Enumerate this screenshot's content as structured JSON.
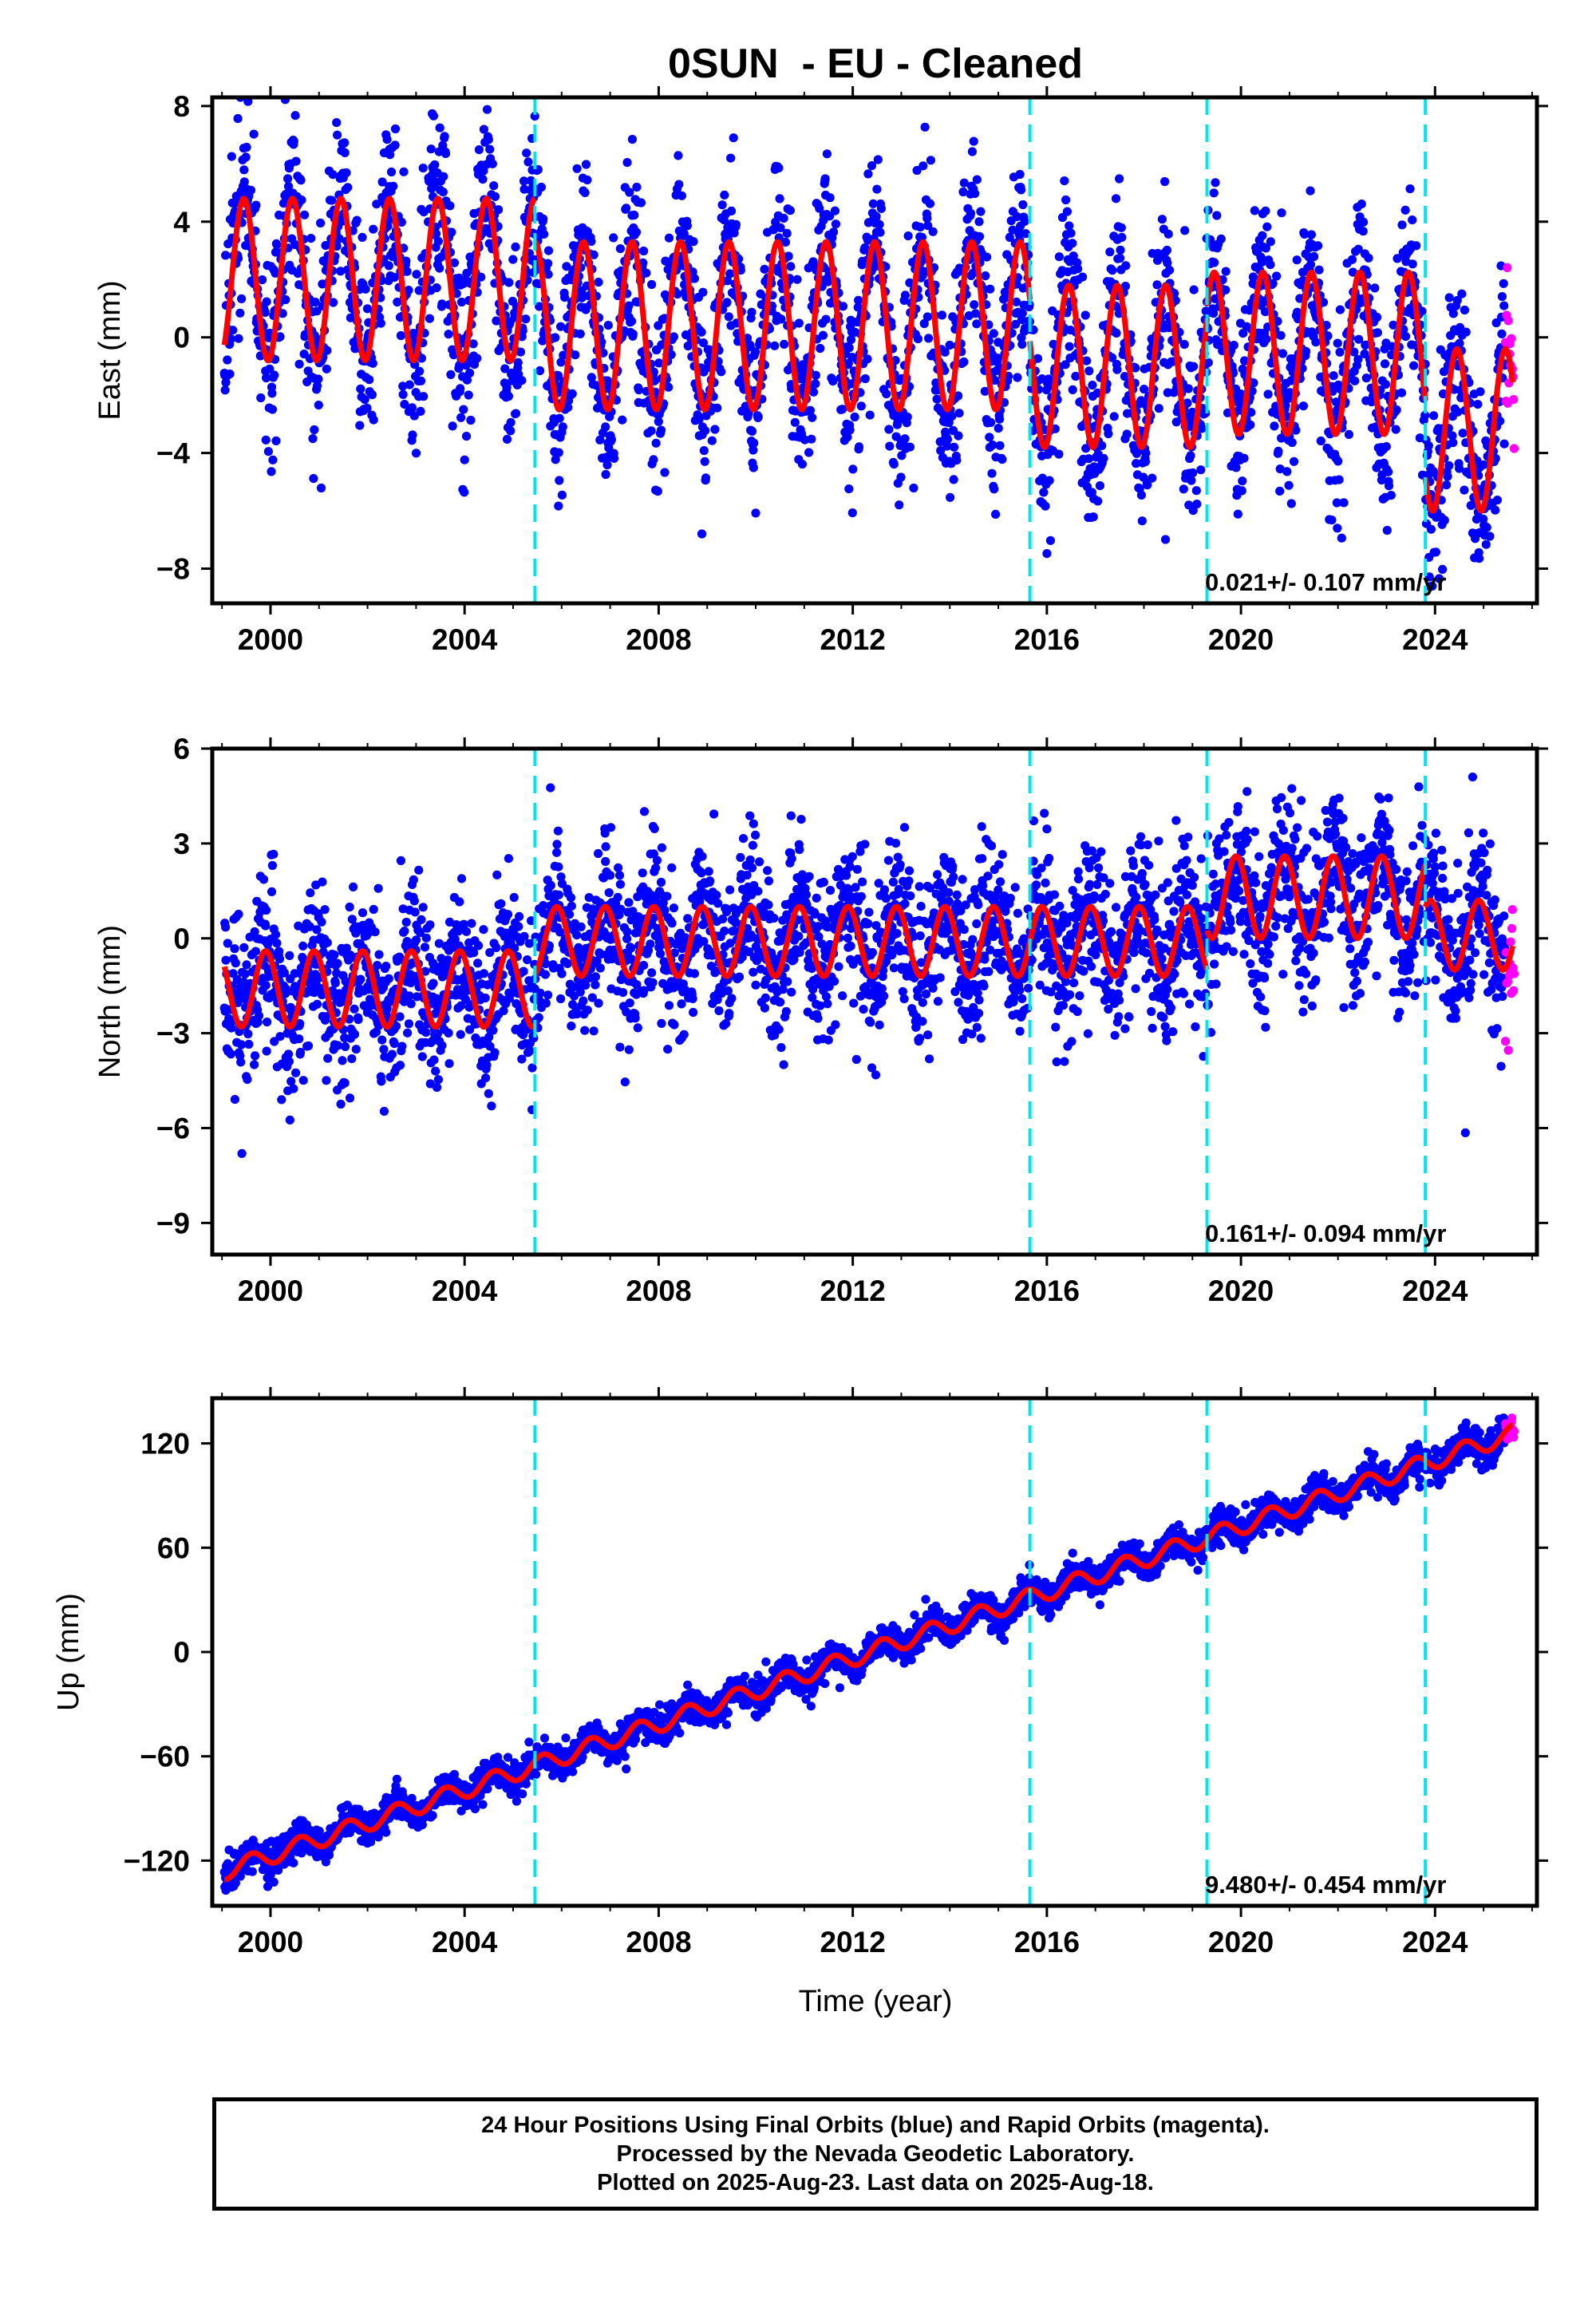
{
  "title": "0SUN  - EU - Cleaned",
  "colors": {
    "final_points": "#0000ff",
    "rapid_points": "#ff00ff",
    "model": "#ff0000",
    "offsets": "#00e5ee",
    "frame": "#000000"
  },
  "xlabel": "Time (year)",
  "chart_data": [
    {
      "type": "scatter",
      "name": "east",
      "ylabel": "East (mm)",
      "xlim": [
        1998.8,
        2026.1
      ],
      "ylim": [
        -9.2,
        8.3
      ],
      "xticks": [
        2000,
        2004,
        2008,
        2012,
        2016,
        2020,
        2024
      ],
      "yticks": [
        -8,
        -4,
        0,
        4,
        8
      ],
      "ytick_labels": [
        "−8",
        "−4",
        "0",
        "4",
        "8"
      ],
      "offsets": [
        2005.45,
        2015.65,
        2019.3,
        2023.8
      ],
      "rate_label": "0.021+/- 0.107 mm/yr",
      "model": {
        "segments": [
          {
            "start": 1999.05,
            "end": 2005.45,
            "mean": 2.0,
            "amplitude": 2.8,
            "phase_peak": 0.45
          },
          {
            "start": 2005.45,
            "end": 2015.65,
            "mean": 0.4,
            "amplitude": 2.9,
            "phase_peak": 0.45
          },
          {
            "start": 2015.65,
            "end": 2019.3,
            "mean": -1.0,
            "amplitude": 2.8,
            "phase_peak": 0.45
          },
          {
            "start": 2019.3,
            "end": 2023.8,
            "mean": -0.55,
            "amplitude": 2.8,
            "phase_peak": 0.45
          },
          {
            "start": 2023.8,
            "end": 2025.6,
            "mean": -3.2,
            "amplitude": 2.8,
            "phase_peak": 0.45
          }
        ]
      },
      "scatter_noise_mm": 1.6,
      "rapid_range": [
        2025.45,
        2025.63
      ]
    },
    {
      "type": "scatter",
      "name": "north",
      "ylabel": "North (mm)",
      "xlim": [
        1998.8,
        2026.1
      ],
      "ylim": [
        -10.0,
        6.0
      ],
      "xticks": [
        2000,
        2004,
        2008,
        2012,
        2016,
        2020,
        2024
      ],
      "yticks": [
        -9,
        -6,
        -3,
        0,
        3,
        6
      ],
      "ytick_labels": [
        "−9",
        "−6",
        "−3",
        "0",
        "3",
        "6"
      ],
      "offsets": [
        2005.45,
        2015.65,
        2019.3,
        2023.8
      ],
      "rate_label": "0.161+/- 0.094 mm/yr",
      "model": {
        "segments": [
          {
            "start": 1999.05,
            "end": 2005.45,
            "mean": -1.6,
            "amplitude": 1.2,
            "phase_peak": 0.9
          },
          {
            "start": 2005.45,
            "end": 2015.65,
            "mean": -0.1,
            "amplitude": 1.1,
            "phase_peak": 0.9
          },
          {
            "start": 2015.65,
            "end": 2019.3,
            "mean": -0.1,
            "amplitude": 1.1,
            "phase_peak": 0.9
          },
          {
            "start": 2019.3,
            "end": 2023.8,
            "mean": 1.3,
            "amplitude": 1.3,
            "phase_peak": 0.9
          },
          {
            "start": 2023.8,
            "end": 2025.6,
            "mean": 0.1,
            "amplitude": 1.1,
            "phase_peak": 0.9
          }
        ]
      },
      "scatter_noise_mm": 1.2,
      "rapid_range": [
        2025.45,
        2025.63
      ]
    },
    {
      "type": "scatter",
      "name": "up",
      "ylabel": "Up (mm)",
      "xlim": [
        1998.8,
        2026.1
      ],
      "ylim": [
        -146,
        146
      ],
      "xticks": [
        2000,
        2004,
        2008,
        2012,
        2016,
        2020,
        2024
      ],
      "yticks": [
        -120,
        -60,
        0,
        60,
        120
      ],
      "ytick_labels": [
        "−120",
        "−60",
        "0",
        "60",
        "120"
      ],
      "offsets": [
        2005.45,
        2015.65,
        2019.3,
        2023.8
      ],
      "rate_label": "9.480+/- 0.454 mm/yr",
      "model": {
        "rate": 9.48,
        "ref_year": 2012.35,
        "intercept": 0,
        "amplitude": 5,
        "phase_peak": 0.6
      },
      "scatter_noise_mm": 4.5,
      "rapid_range": [
        2025.45,
        2025.63
      ]
    }
  ],
  "footer": {
    "line1": "24 Hour Positions Using Final Orbits (blue) and Rapid Orbits (magenta).",
    "line2": "Processed by the Nevada Geodetic Laboratory.",
    "line3": "Plotted on 2025-Aug-23. Last data on 2025-Aug-18."
  }
}
